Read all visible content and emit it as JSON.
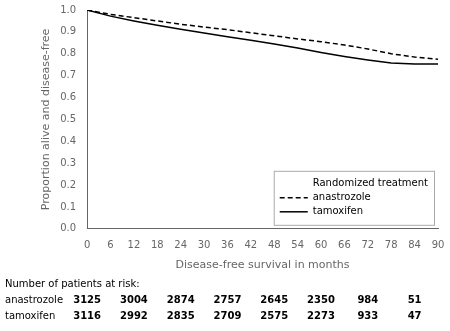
{
  "chart_data": {
    "type": "line",
    "xlabel": "Disease-free survival in months",
    "ylabel": "Proportion alive and disease-free",
    "x": [
      0,
      6,
      12,
      18,
      24,
      30,
      36,
      42,
      48,
      54,
      60,
      66,
      72,
      78,
      84,
      90
    ],
    "series": [
      {
        "name": "anastrozole",
        "color": "#000000",
        "line_style": "dashed",
        "values": [
          1.0,
          0.98,
          0.965,
          0.95,
          0.935,
          0.922,
          0.91,
          0.896,
          0.882,
          0.868,
          0.855,
          0.84,
          0.822,
          0.8,
          0.785,
          0.775
        ]
      },
      {
        "name": "tamoxifen",
        "color": "#000000",
        "line_style": "solid",
        "values": [
          1.0,
          0.972,
          0.95,
          0.93,
          0.912,
          0.895,
          0.878,
          0.862,
          0.845,
          0.826,
          0.806,
          0.788,
          0.772,
          0.758,
          0.753,
          0.753
        ]
      }
    ],
    "xlim": [
      0,
      90
    ],
    "xticks": [
      0,
      6,
      12,
      18,
      24,
      30,
      36,
      42,
      48,
      54,
      60,
      66,
      72,
      78,
      84,
      90
    ],
    "ylim": [
      0,
      1
    ],
    "yticks": [
      {
        "value": 0,
        "label": "0.0"
      },
      0.1,
      0.2,
      0.3,
      0.4,
      0.5,
      0.6,
      0.7,
      0.8,
      0.9,
      {
        "value": 1,
        "label": "1.0"
      }
    ],
    "grid": false,
    "legend": "lower right",
    "legend_title": "Randomized treatment",
    "at_risk": {
      "title": "Number of patients at risk:",
      "x": [
        0,
        12,
        24,
        36,
        48,
        60,
        72,
        84
      ],
      "rows": [
        {
          "name": "anastrozole",
          "values": [
            3125,
            3004,
            2874,
            2757,
            2645,
            2350,
            984,
            51
          ]
        },
        {
          "name": "tamoxifen",
          "values": [
            3116,
            2992,
            2835,
            2709,
            2575,
            2273,
            933,
            47
          ]
        }
      ]
    }
  }
}
